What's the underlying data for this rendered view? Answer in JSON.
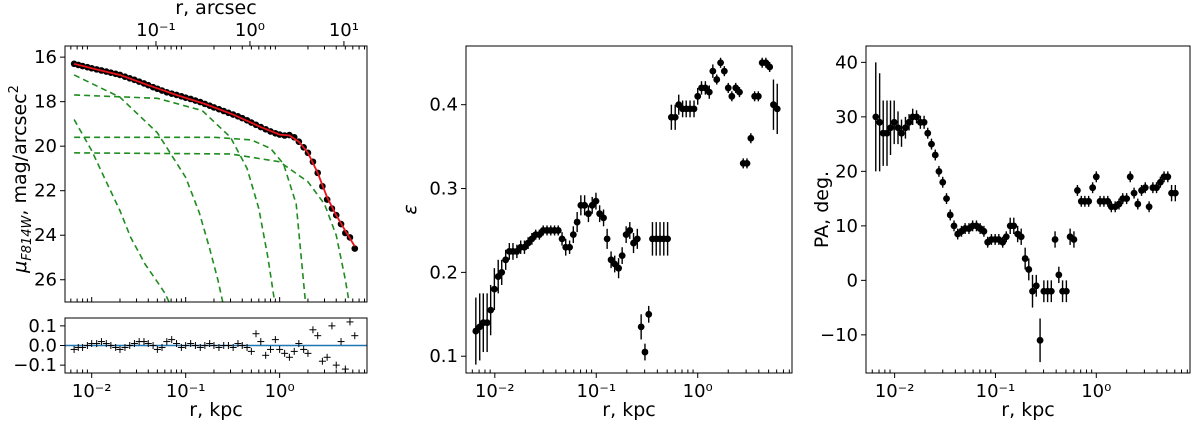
{
  "chart_data": [
    {
      "type": "line",
      "panel": "surface-brightness-profile",
      "xlabel": "r, kpc",
      "top_xlabel": "r, arcsec",
      "ylabel_main": "μ",
      "ylabel_sub": "F814W",
      "ylabel_rest": ", mag/arcsec",
      "ylabel_sup": "2",
      "xscale": "log",
      "xlim": [
        0.0052,
        8.5
      ],
      "ylim": [
        27.0,
        15.5
      ],
      "y_inverted": true,
      "x_tick_labels": [
        "10⁻²",
        "10⁻¹",
        "10⁰"
      ],
      "x_ticks": [
        0.01,
        0.1,
        1
      ],
      "top_tick_labels": [
        "10⁻¹",
        "10⁰",
        "10¹"
      ],
      "top_ticks_kpc": [
        0.0483,
        0.483,
        4.83
      ],
      "y_tick_labels": [
        "16",
        "18",
        "20",
        "22",
        "24",
        "26"
      ],
      "y_ticks": [
        16,
        18,
        20,
        22,
        24,
        26
      ],
      "colors": {
        "data": "#000000",
        "model": "#e8141c",
        "component": "#1f8c1f"
      },
      "observed": {
        "x": [
          0.0065,
          0.0072,
          0.008,
          0.009,
          0.01,
          0.0113,
          0.0127,
          0.0143,
          0.016,
          0.018,
          0.02,
          0.0226,
          0.0254,
          0.0285,
          0.032,
          0.036,
          0.04,
          0.045,
          0.05,
          0.056,
          0.063,
          0.071,
          0.08,
          0.09,
          0.1,
          0.113,
          0.127,
          0.143,
          0.16,
          0.18,
          0.2,
          0.226,
          0.254,
          0.285,
          0.32,
          0.36,
          0.4,
          0.45,
          0.5,
          0.56,
          0.63,
          0.71,
          0.8,
          0.9,
          1.0,
          1.13,
          1.27,
          1.43,
          1.6,
          1.8,
          2.0,
          2.26,
          2.54,
          2.85,
          3.2,
          3.6,
          4.0,
          4.5,
          5.0,
          5.6,
          6.3
        ],
        "y": [
          16.3,
          16.35,
          16.4,
          16.45,
          16.5,
          16.55,
          16.6,
          16.65,
          16.7,
          16.75,
          16.8,
          16.88,
          16.95,
          17.02,
          17.1,
          17.18,
          17.26,
          17.35,
          17.42,
          17.5,
          17.58,
          17.64,
          17.7,
          17.76,
          17.82,
          17.88,
          17.95,
          18.02,
          18.1,
          18.18,
          18.26,
          18.34,
          18.42,
          18.5,
          18.58,
          18.66,
          18.74,
          18.84,
          18.94,
          19.04,
          19.14,
          19.24,
          19.34,
          19.42,
          19.48,
          19.52,
          19.5,
          19.6,
          19.8,
          20.05,
          20.3,
          20.7,
          21.2,
          21.8,
          22.4,
          22.8,
          23.1,
          23.5,
          23.9,
          24.1,
          24.6
        ]
      },
      "model": {
        "x": [
          0.0065,
          0.01,
          0.02,
          0.04,
          0.08,
          0.16,
          0.32,
          0.63,
          1.0,
          1.27,
          1.6,
          2.0,
          2.54,
          3.2,
          4.0,
          5.0,
          6.3
        ],
        "y": [
          16.3,
          16.5,
          16.8,
          17.26,
          17.7,
          18.1,
          18.58,
          19.14,
          19.48,
          19.52,
          19.8,
          20.3,
          21.2,
          22.3,
          23.1,
          23.8,
          24.5
        ]
      },
      "components": [
        {
          "x": [
            0.0065,
            0.01,
            0.0143,
            0.02,
            0.026,
            0.032,
            0.037,
            0.043,
            0.05,
            0.06,
            0.072,
            0.084
          ],
          "y": [
            18.8,
            20.2,
            21.6,
            22.9,
            24.1,
            24.8,
            25.3,
            25.7,
            26.1,
            26.6,
            27.3,
            28.0
          ]
        },
        {
          "x": [
            0.0065,
            0.02,
            0.05,
            0.1,
            0.14,
            0.18,
            0.22,
            0.26
          ],
          "y": [
            16.8,
            17.8,
            19.4,
            21.4,
            23.0,
            24.6,
            26.0,
            27.4
          ]
        },
        {
          "x": [
            0.0065,
            0.05,
            0.15,
            0.3,
            0.45,
            0.6,
            0.75,
            0.9
          ],
          "y": [
            17.7,
            17.85,
            18.4,
            19.6,
            21.0,
            22.8,
            25.0,
            27.2
          ]
        },
        {
          "x": [
            0.0065,
            0.2,
            0.5,
            0.8,
            1.1,
            1.5,
            1.9
          ],
          "y": [
            19.6,
            19.6,
            19.72,
            20.1,
            20.8,
            22.6,
            27.2
          ]
        },
        {
          "x": [
            0.0065,
            0.3,
            1.0,
            2.0,
            3.0,
            4.0,
            5.0,
            6.0
          ],
          "y": [
            20.3,
            20.35,
            20.7,
            21.6,
            22.6,
            24.0,
            26.0,
            28.0
          ]
        }
      ]
    },
    {
      "type": "scatter",
      "panel": "residuals",
      "xlabel": "r, kpc",
      "xscale": "log",
      "xlim": [
        0.0052,
        8.5
      ],
      "ylim": [
        -0.14,
        0.14
      ],
      "y_tick_labels": [
        "0.1",
        "0.0",
        "−0.1"
      ],
      "y_ticks": [
        0.1,
        0.0,
        -0.1
      ],
      "x_tick_labels": [
        "10⁻²",
        "10⁻¹",
        "10⁰"
      ],
      "x_ticks": [
        0.01,
        0.1,
        1
      ],
      "zero_line_color": "#1f77b4",
      "x": [
        0.0065,
        0.0072,
        0.008,
        0.009,
        0.01,
        0.0113,
        0.0127,
        0.0143,
        0.016,
        0.018,
        0.02,
        0.0226,
        0.0254,
        0.0285,
        0.032,
        0.036,
        0.04,
        0.045,
        0.05,
        0.056,
        0.063,
        0.071,
        0.08,
        0.09,
        0.1,
        0.113,
        0.127,
        0.143,
        0.16,
        0.18,
        0.2,
        0.226,
        0.254,
        0.285,
        0.32,
        0.36,
        0.4,
        0.45,
        0.5,
        0.56,
        0.63,
        0.71,
        0.8,
        0.9,
        1.0,
        1.13,
        1.27,
        1.43,
        1.6,
        1.8,
        2.0,
        2.26,
        2.54,
        2.85,
        3.2,
        3.6,
        4.0,
        4.5,
        5.0,
        5.6,
        6.3
      ],
      "y": [
        -0.02,
        -0.01,
        -0.01,
        0.0,
        0.01,
        0.01,
        0.02,
        0.01,
        0.0,
        -0.01,
        -0.02,
        -0.01,
        0.0,
        0.01,
        0.02,
        0.02,
        0.01,
        0.0,
        -0.02,
        -0.01,
        0.02,
        0.03,
        0.01,
        -0.01,
        0.0,
        0.01,
        0.0,
        -0.01,
        0.0,
        0.01,
        0.0,
        -0.01,
        0.0,
        0.0,
        -0.01,
        0.01,
        0.0,
        -0.01,
        -0.03,
        0.06,
        0.02,
        -0.05,
        -0.02,
        0.03,
        -0.02,
        -0.04,
        -0.06,
        -0.03,
        0.01,
        -0.02,
        -0.04,
        0.08,
        0.05,
        -0.08,
        -0.06,
        0.1,
        -0.1,
        0.02,
        -0.12,
        0.12,
        0.05
      ]
    },
    {
      "type": "scatter",
      "panel": "ellipticity",
      "xlabel": "r, kpc",
      "ylabel": "ε",
      "xscale": "log",
      "xlim": [
        0.0052,
        8.5
      ],
      "ylim": [
        0.08,
        0.47
      ],
      "y_tick_labels": [
        "0.1",
        "0.2",
        "0.3",
        "0.4"
      ],
      "y_ticks": [
        0.1,
        0.2,
        0.3,
        0.4
      ],
      "x_tick_labels": [
        "10⁻²",
        "10⁻¹",
        "10⁰"
      ],
      "x_ticks": [
        0.01,
        0.1,
        1
      ],
      "x": [
        0.0065,
        0.0071,
        0.0077,
        0.0084,
        0.0091,
        0.0099,
        0.0108,
        0.0117,
        0.0128,
        0.0139,
        0.0151,
        0.0165,
        0.018,
        0.0196,
        0.0213,
        0.0232,
        0.0253,
        0.0275,
        0.03,
        0.0327,
        0.0356,
        0.0388,
        0.0422,
        0.046,
        0.05,
        0.0546,
        0.0594,
        0.0648,
        0.0705,
        0.0768,
        0.0837,
        0.0912,
        0.0993,
        0.108,
        0.118,
        0.128,
        0.14,
        0.152,
        0.166,
        0.18,
        0.197,
        0.214,
        0.233,
        0.254,
        0.277,
        0.302,
        0.329,
        0.358,
        0.39,
        0.425,
        0.463,
        0.505,
        0.55,
        0.6,
        0.65,
        0.71,
        0.77,
        0.84,
        0.92,
        1.0,
        1.09,
        1.19,
        1.3,
        1.41,
        1.54,
        1.68,
        1.83,
        2.0,
        2.17,
        2.37,
        2.58,
        2.81,
        3.06,
        3.34,
        3.64,
        3.96,
        4.32,
        4.7,
        5.12,
        5.58,
        6.08
      ],
      "y": [
        0.13,
        0.135,
        0.14,
        0.14,
        0.155,
        0.18,
        0.195,
        0.2,
        0.215,
        0.225,
        0.225,
        0.225,
        0.23,
        0.23,
        0.235,
        0.24,
        0.245,
        0.245,
        0.25,
        0.25,
        0.25,
        0.25,
        0.25,
        0.24,
        0.23,
        0.23,
        0.245,
        0.26,
        0.28,
        0.28,
        0.27,
        0.28,
        0.285,
        0.27,
        0.265,
        0.24,
        0.215,
        0.21,
        0.205,
        0.22,
        0.245,
        0.25,
        0.235,
        0.24,
        0.135,
        0.105,
        0.15,
        0.24,
        0.24,
        0.24,
        0.24,
        0.24,
        0.385,
        0.385,
        0.4,
        0.395,
        0.395,
        0.395,
        0.395,
        0.41,
        0.42,
        0.42,
        0.415,
        0.44,
        0.43,
        0.45,
        0.44,
        0.42,
        0.41,
        0.42,
        0.415,
        0.33,
        0.33,
        0.36,
        0.41,
        0.41,
        0.45,
        0.45,
        0.445,
        0.4,
        0.395
      ],
      "yerr": [
        0.04,
        0.04,
        0.035,
        0.035,
        0.03,
        0.025,
        0.02,
        0.015,
        0.012,
        0.01,
        0.01,
        0.008,
        0.008,
        0.008,
        0.007,
        0.007,
        0.006,
        0.006,
        0.006,
        0.006,
        0.006,
        0.006,
        0.006,
        0.008,
        0.01,
        0.008,
        0.01,
        0.012,
        0.012,
        0.012,
        0.01,
        0.01,
        0.01,
        0.01,
        0.01,
        0.012,
        0.01,
        0.01,
        0.012,
        0.01,
        0.01,
        0.01,
        0.012,
        0.012,
        0.015,
        0.01,
        0.01,
        0.02,
        0.02,
        0.02,
        0.02,
        0.02,
        0.015,
        0.015,
        0.012,
        0.01,
        0.01,
        0.01,
        0.01,
        0.01,
        0.008,
        0.008,
        0.008,
        0.008,
        0.006,
        0.006,
        0.006,
        0.006,
        0.006,
        0.006,
        0.006,
        0.006,
        0.006,
        0.006,
        0.006,
        0.006,
        0.006,
        0.006,
        0.006,
        0.03,
        0.03
      ]
    },
    {
      "type": "scatter",
      "panel": "position-angle",
      "xlabel": "r, kpc",
      "ylabel": "PA, deg.",
      "xscale": "log",
      "xlim": [
        0.0052,
        8.5
      ],
      "ylim": [
        -17,
        43
      ],
      "y_tick_labels": [
        "40",
        "30",
        "20",
        "10",
        "0",
        "−10"
      ],
      "y_ticks": [
        40,
        30,
        20,
        10,
        0,
        -10
      ],
      "x_tick_labels": [
        "10⁻²",
        "10⁻¹",
        "10⁰"
      ],
      "x_ticks": [
        0.01,
        0.1,
        1
      ],
      "x": [
        0.0065,
        0.0071,
        0.0077,
        0.0084,
        0.0091,
        0.0099,
        0.0108,
        0.0117,
        0.0128,
        0.0139,
        0.0151,
        0.0165,
        0.018,
        0.0196,
        0.0213,
        0.0232,
        0.0253,
        0.0275,
        0.03,
        0.0327,
        0.0356,
        0.0388,
        0.0422,
        0.046,
        0.05,
        0.0546,
        0.0594,
        0.0648,
        0.0705,
        0.0768,
        0.0837,
        0.0912,
        0.0993,
        0.108,
        0.118,
        0.128,
        0.14,
        0.152,
        0.166,
        0.18,
        0.197,
        0.214,
        0.233,
        0.254,
        0.277,
        0.302,
        0.329,
        0.358,
        0.39,
        0.425,
        0.463,
        0.505,
        0.55,
        0.6,
        0.65,
        0.71,
        0.77,
        0.84,
        0.92,
        1.0,
        1.09,
        1.19,
        1.3,
        1.41,
        1.54,
        1.68,
        1.83,
        2.0,
        2.17,
        2.37,
        2.58,
        2.81,
        3.06,
        3.34,
        3.64,
        3.96,
        4.32,
        4.7,
        5.12,
        5.58,
        6.08
      ],
      "y": [
        30,
        29,
        27,
        27,
        28,
        29,
        28,
        27,
        28,
        29,
        30,
        30,
        29,
        29,
        27,
        25,
        23,
        20,
        18,
        15,
        12,
        10,
        8.5,
        9,
        9.5,
        9.5,
        10,
        10,
        9.5,
        9,
        7,
        7.5,
        7.5,
        7.5,
        7,
        8,
        10,
        10,
        8.5,
        8,
        4,
        2,
        -2,
        -1,
        -11,
        -2,
        -2,
        -2,
        7.5,
        1,
        -2,
        -2,
        8,
        7.5,
        16.5,
        14.5,
        14.5,
        14.5,
        17,
        19,
        14.5,
        14.5,
        14.5,
        13.5,
        13.5,
        14,
        15,
        15,
        19,
        16,
        14,
        16.5,
        17,
        13.5,
        17,
        17,
        18,
        19,
        19,
        16,
        16
      ],
      "yerr": [
        10,
        9,
        6,
        6,
        5,
        4,
        3,
        2.5,
        2,
        1.5,
        1.5,
        1.2,
        1.2,
        1.2,
        1,
        1,
        1,
        1,
        1,
        1,
        1,
        1,
        1,
        1,
        1,
        1,
        1,
        1,
        1,
        1,
        1,
        1,
        1,
        1,
        1,
        1,
        1.5,
        1.5,
        1.5,
        1.5,
        2,
        2,
        3,
        2,
        4,
        2,
        2,
        2,
        1.5,
        1.5,
        2,
        2,
        1.5,
        1.5,
        1,
        1,
        1,
        1,
        1,
        1,
        1,
        1,
        1,
        1,
        1,
        1,
        1,
        1,
        1,
        1,
        1,
        1,
        1,
        1,
        1,
        1,
        1,
        1,
        1,
        1.5,
        1.5
      ]
    }
  ]
}
